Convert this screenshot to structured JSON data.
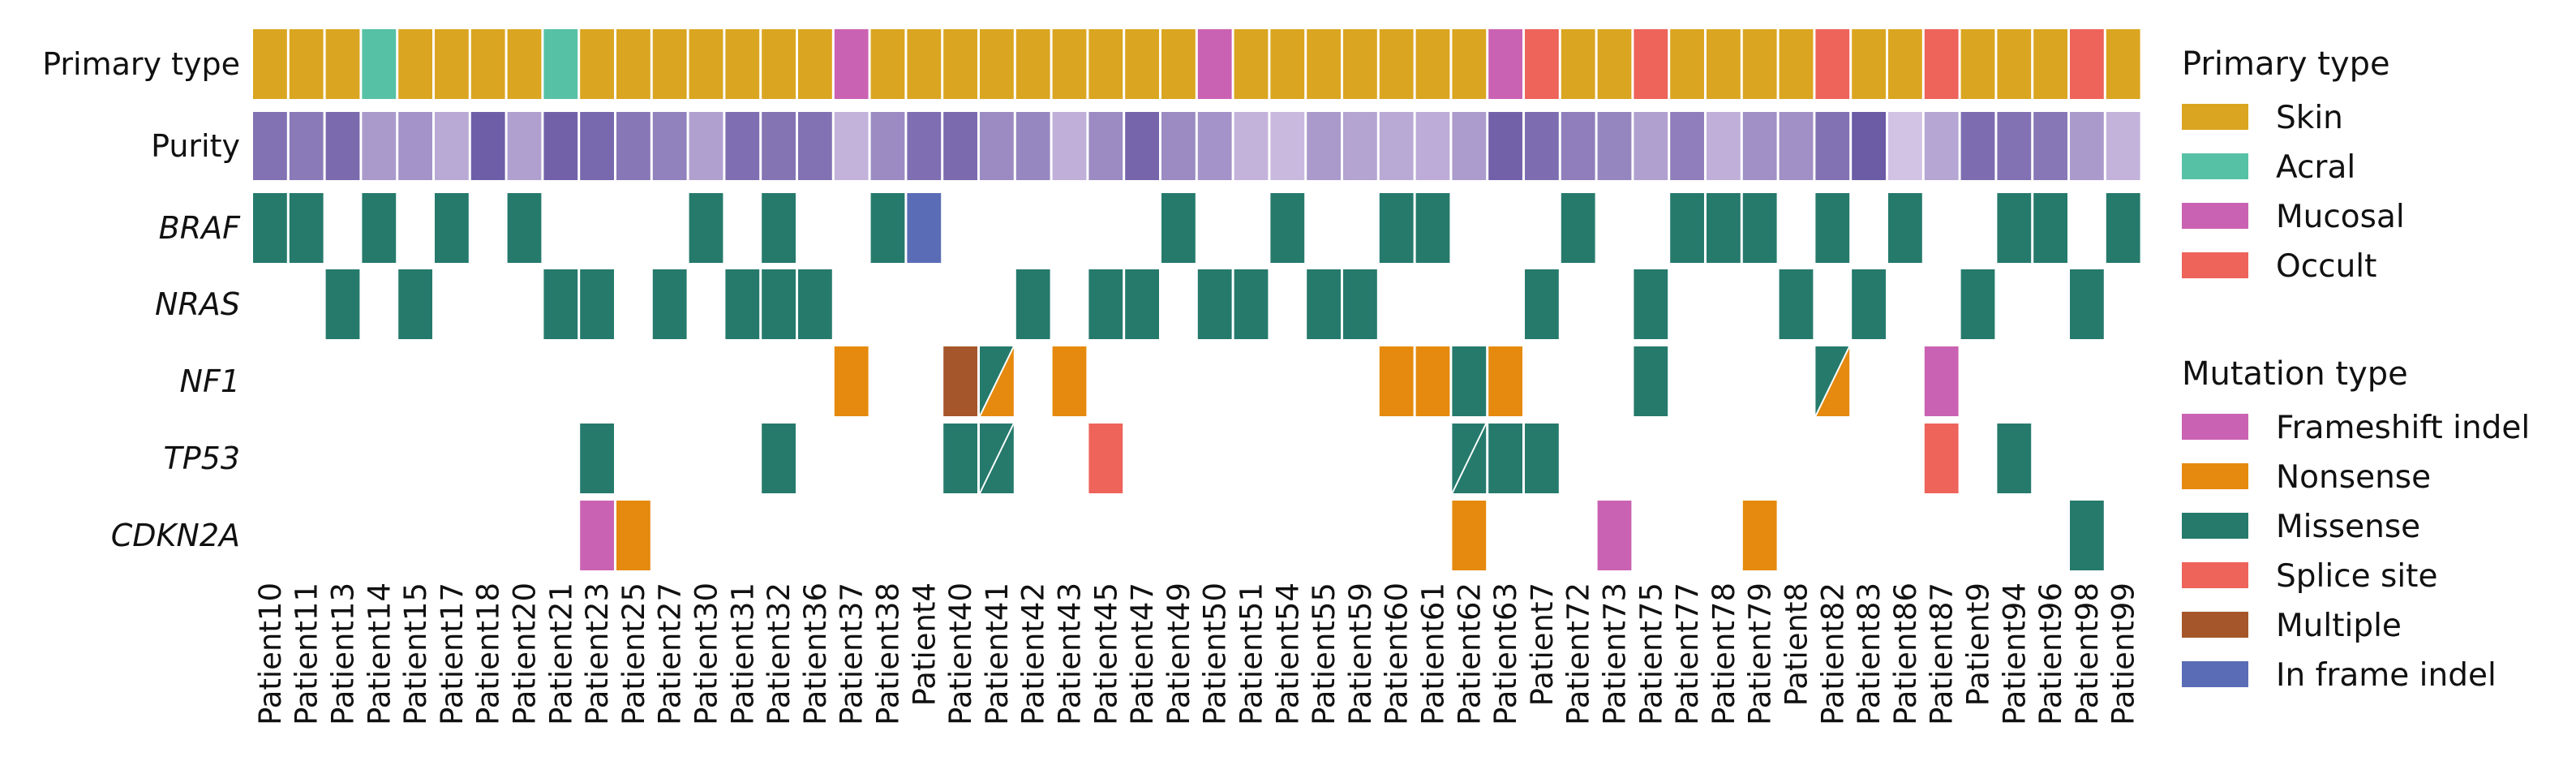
{
  "chart_data": {
    "type": "heatmap",
    "subtype": "oncoprint",
    "patients": [
      "Patient10",
      "Patient11",
      "Patient13",
      "Patient14",
      "Patient15",
      "Patient17",
      "Patient18",
      "Patient20",
      "Patient21",
      "Patient23",
      "Patient25",
      "Patient27",
      "Patient30",
      "Patient31",
      "Patient32",
      "Patient36",
      "Patient37",
      "Patient38",
      "Patient4",
      "Patient40",
      "Patient41",
      "Patient42",
      "Patient43",
      "Patient45",
      "Patient47",
      "Patient49",
      "Patient50",
      "Patient51",
      "Patient54",
      "Patient55",
      "Patient59",
      "Patient60",
      "Patient61",
      "Patient62",
      "Patient63",
      "Patient7",
      "Patient72",
      "Patient73",
      "Patient75",
      "Patient77",
      "Patient78",
      "Patient79",
      "Patient8",
      "Patient82",
      "Patient83",
      "Patient86",
      "Patient87",
      "Patient9",
      "Patient94",
      "Patient96",
      "Patient98",
      "Patient99"
    ],
    "annotation_rows": {
      "primary_type": {
        "label": "Primary type",
        "values": [
          "Skin",
          "Skin",
          "Skin",
          "Acral",
          "Skin",
          "Skin",
          "Skin",
          "Skin",
          "Acral",
          "Skin",
          "Skin",
          "Skin",
          "Skin",
          "Skin",
          "Skin",
          "Skin",
          "Mucosal",
          "Skin",
          "Skin",
          "Skin",
          "Skin",
          "Skin",
          "Skin",
          "Skin",
          "Skin",
          "Skin",
          "Mucosal",
          "Skin",
          "Skin",
          "Skin",
          "Skin",
          "Skin",
          "Skin",
          "Skin",
          "Mucosal",
          "Occult",
          "Skin",
          "Skin",
          "Occult",
          "Skin",
          "Skin",
          "Skin",
          "Skin",
          "Occult",
          "Skin",
          "Skin",
          "Occult",
          "Skin",
          "Skin",
          "Skin",
          "Occult",
          "Skin"
        ]
      },
      "purity": {
        "label": "Purity",
        "values": [
          0.82,
          0.75,
          0.88,
          0.5,
          0.55,
          0.38,
          0.98,
          0.45,
          0.95,
          0.9,
          0.78,
          0.7,
          0.45,
          0.85,
          0.8,
          0.82,
          0.3,
          0.62,
          0.85,
          0.88,
          0.62,
          0.65,
          0.32,
          0.62,
          0.92,
          0.62,
          0.55,
          0.3,
          0.25,
          0.5,
          0.42,
          0.38,
          0.35,
          0.48,
          0.95,
          0.86,
          0.72,
          0.66,
          0.45,
          0.72,
          0.32,
          0.58,
          0.58,
          0.82,
          1.0,
          0.18,
          0.4,
          0.86,
          0.82,
          0.78,
          0.5,
          0.3
        ]
      }
    },
    "genes": [
      "BRAF",
      "NRAS",
      "NF1",
      "TP53",
      "CDKN2A"
    ],
    "mutations": {
      "BRAF": [
        [
          "Patient10",
          "Missense"
        ],
        [
          "Patient11",
          "Missense"
        ],
        [
          "Patient14",
          "Missense"
        ],
        [
          "Patient17",
          "Missense"
        ],
        [
          "Patient20",
          "Missense"
        ],
        [
          "Patient30",
          "Missense"
        ],
        [
          "Patient32",
          "Missense"
        ],
        [
          "Patient38",
          "Missense"
        ],
        [
          "Patient4",
          "In frame indel"
        ],
        [
          "Patient49",
          "Missense"
        ],
        [
          "Patient54",
          "Missense"
        ],
        [
          "Patient60",
          "Missense"
        ],
        [
          "Patient61",
          "Missense"
        ],
        [
          "Patient72",
          "Missense"
        ],
        [
          "Patient77",
          "Missense"
        ],
        [
          "Patient78",
          "Missense"
        ],
        [
          "Patient79",
          "Missense"
        ],
        [
          "Patient82",
          "Missense"
        ],
        [
          "Patient86",
          "Missense"
        ],
        [
          "Patient94",
          "Missense"
        ],
        [
          "Patient96",
          "Missense"
        ],
        [
          "Patient99",
          "Missense"
        ]
      ],
      "NRAS": [
        [
          "Patient13",
          "Missense"
        ],
        [
          "Patient15",
          "Missense"
        ],
        [
          "Patient21",
          "Missense"
        ],
        [
          "Patient23",
          "Missense"
        ],
        [
          "Patient27",
          "Missense"
        ],
        [
          "Patient31",
          "Missense"
        ],
        [
          "Patient32",
          "Missense"
        ],
        [
          "Patient36",
          "Missense"
        ],
        [
          "Patient42",
          "Missense"
        ],
        [
          "Patient45",
          "Missense"
        ],
        [
          "Patient47",
          "Missense"
        ],
        [
          "Patient50",
          "Missense"
        ],
        [
          "Patient51",
          "Missense"
        ],
        [
          "Patient55",
          "Missense"
        ],
        [
          "Patient59",
          "Missense"
        ],
        [
          "Patient7",
          "Missense"
        ],
        [
          "Patient75",
          "Missense"
        ],
        [
          "Patient8",
          "Missense"
        ],
        [
          "Patient83",
          "Missense"
        ],
        [
          "Patient9",
          "Missense"
        ],
        [
          "Patient98",
          "Missense"
        ]
      ],
      "NF1": [
        [
          "Patient37",
          "Nonsense"
        ],
        [
          "Patient40",
          "Multiple"
        ],
        [
          "Patient41",
          "Missense",
          "Nonsense"
        ],
        [
          "Patient43",
          "Nonsense"
        ],
        [
          "Patient60",
          "Nonsense"
        ],
        [
          "Patient61",
          "Nonsense"
        ],
        [
          "Patient62",
          "Missense"
        ],
        [
          "Patient63",
          "Nonsense"
        ],
        [
          "Patient75",
          "Missense"
        ],
        [
          "Patient82",
          "Missense",
          "Nonsense"
        ],
        [
          "Patient87",
          "Frameshift indel"
        ]
      ],
      "TP53": [
        [
          "Patient23",
          "Missense"
        ],
        [
          "Patient32",
          "Missense"
        ],
        [
          "Patient40",
          "Missense"
        ],
        [
          "Patient41",
          "Missense",
          "Missense"
        ],
        [
          "Patient45",
          "Splice site"
        ],
        [
          "Patient62",
          "Missense",
          "Missense"
        ],
        [
          "Patient63",
          "Missense"
        ],
        [
          "Patient7",
          "Missense"
        ],
        [
          "Patient87",
          "Splice site"
        ],
        [
          "Patient94",
          "Missense"
        ]
      ],
      "CDKN2A": [
        [
          "Patient23",
          "Frameshift indel"
        ],
        [
          "Patient25",
          "Nonsense"
        ],
        [
          "Patient62",
          "Nonsense"
        ],
        [
          "Patient73",
          "Frameshift indel"
        ],
        [
          "Patient79",
          "Nonsense"
        ],
        [
          "Patient98",
          "Missense"
        ]
      ]
    },
    "legends": [
      {
        "title": "Primary type",
        "entries": [
          {
            "label": "Skin",
            "color": "#DAA520"
          },
          {
            "label": "Acral",
            "color": "#56C1A5"
          },
          {
            "label": "Mucosal",
            "color": "#CA62B3"
          },
          {
            "label": "Occult",
            "color": "#EE635A"
          }
        ]
      },
      {
        "title": "Mutation type",
        "entries": [
          {
            "label": "Frameshift indel",
            "color": "#CA62B3"
          },
          {
            "label": "Nonsense",
            "color": "#E58A0E"
          },
          {
            "label": "Missense",
            "color": "#257A6C"
          },
          {
            "label": "Splice site",
            "color": "#EE635A"
          },
          {
            "label": "Multiple",
            "color": "#A5562B"
          },
          {
            "label": "In frame indel",
            "color": "#5A6CB5"
          }
        ]
      }
    ],
    "purity_colors": {
      "low": "#E8D8F2",
      "high": "#6C5BA5"
    },
    "grid": false,
    "legend_placement": "right"
  }
}
